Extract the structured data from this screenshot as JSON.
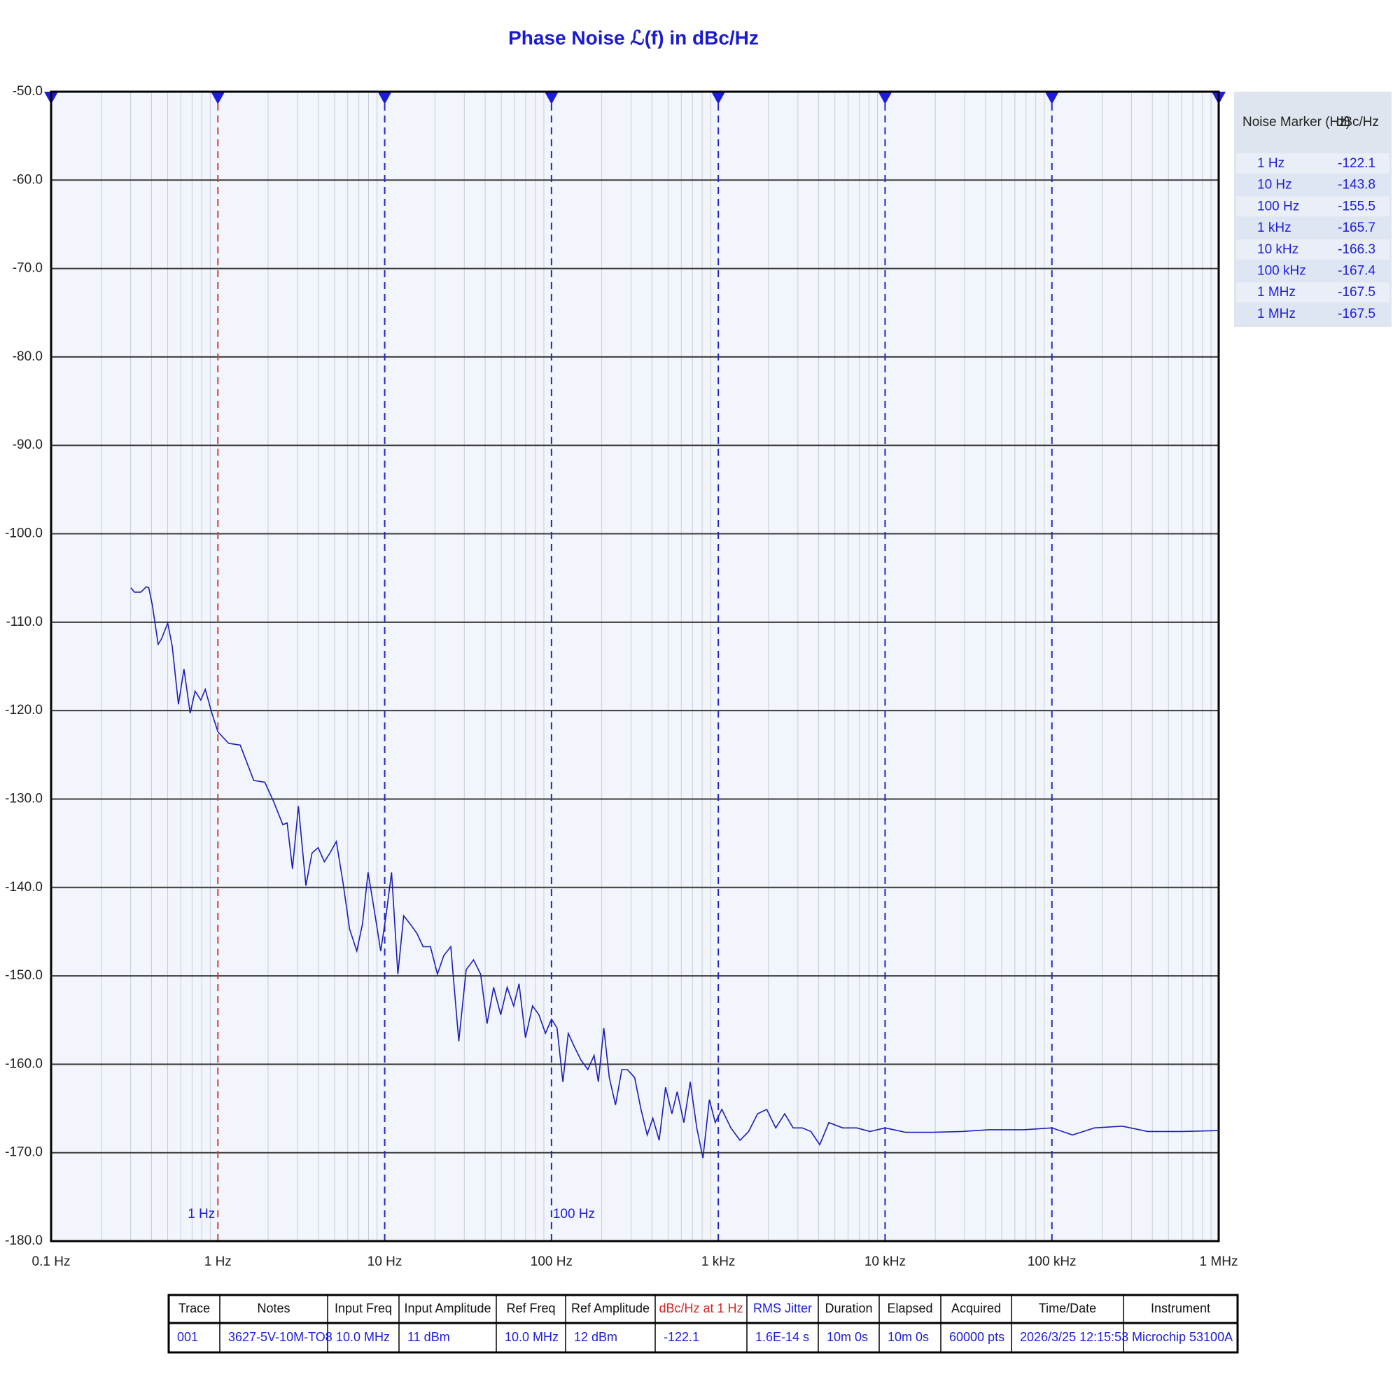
{
  "chart_data": {
    "type": "line",
    "title": "Phase Noise ℒ(f) in dBc/Hz",
    "log_x": true,
    "grid": true,
    "xlim": [
      0.1,
      1000000
    ],
    "xticks": [
      {
        "value": 0.1,
        "label": "0.1 Hz"
      },
      {
        "value": 1,
        "label": "1 Hz"
      },
      {
        "value": 10,
        "label": "10 Hz"
      },
      {
        "value": 100,
        "label": "100 Hz"
      },
      {
        "value": 1000,
        "label": "1 kHz"
      },
      {
        "value": 10000,
        "label": "10 kHz"
      },
      {
        "value": 100000,
        "label": "100 kHz"
      },
      {
        "value": 1000000,
        "label": "1 MHz"
      }
    ],
    "ylim": [
      -180,
      -50
    ],
    "yticks": [
      {
        "value": -50,
        "label": "-50.0"
      },
      {
        "value": -60,
        "label": "-60.0"
      },
      {
        "value": -70,
        "label": "-70.0"
      },
      {
        "value": -80,
        "label": "-80.0"
      },
      {
        "value": -90,
        "label": "-90.0"
      },
      {
        "value": -100,
        "label": "-100.0"
      },
      {
        "value": -110,
        "label": "-110.0"
      },
      {
        "value": -120,
        "label": "-120.0"
      },
      {
        "value": -130,
        "label": "-130.0"
      },
      {
        "value": -140,
        "label": "-140.0"
      },
      {
        "value": -150,
        "label": "-150.0"
      },
      {
        "value": -160,
        "label": "-160.0"
      },
      {
        "value": -170,
        "label": "-170.0"
      },
      {
        "value": -180,
        "label": "-180.0"
      }
    ],
    "annotations": [
      {
        "text": "1 Hz",
        "x": 1
      },
      {
        "text": "100 Hz",
        "x": 100
      }
    ],
    "x": [
      0.301,
      0.316,
      0.345,
      0.372,
      0.385,
      0.405,
      0.438,
      0.459,
      0.5,
      0.532,
      0.58,
      0.626,
      0.682,
      0.73,
      0.79,
      0.84,
      0.92,
      1.0,
      1.16,
      1.36,
      1.64,
      1.91,
      2.16,
      2.45,
      2.6,
      2.8,
      3.04,
      3.37,
      3.67,
      3.99,
      4.35,
      4.7,
      5.13,
      5.64,
      6.16,
      6.8,
      7.36,
      7.95,
      8.58,
      9.47,
      10.2,
      11.0,
      12.0,
      13.0,
      14.3,
      15.6,
      17.0,
      18.8,
      20.7,
      22.6,
      24.9,
      27.8,
      30.8,
      34.1,
      37.6,
      41.1,
      45.0,
      49.6,
      54.2,
      59.3,
      63.9,
      69.8,
      77.0,
      84.1,
      92.0,
      100,
      108,
      117,
      126,
      137,
      150,
      165,
      180,
      191,
      206,
      222,
      242,
      264,
      285,
      315,
      344,
      375,
      405,
      442,
      483,
      527,
      567,
      622,
      679,
      743,
      809,
      884,
      959,
      1050,
      1190,
      1350,
      1520,
      1720,
      1950,
      2210,
      2500,
      2810,
      3180,
      3590,
      4060,
      4600,
      5570,
      6770,
      8110,
      10000,
      13300,
      19200,
      28900,
      41900,
      67800,
      100000,
      133000,
      180000,
      264000,
      375000,
      609000,
      1000000
    ],
    "series": [
      {
        "name": "001",
        "color": "#1c1cb8",
        "values": [
          -106.1,
          -106.6,
          -106.6,
          -106.0,
          -106.1,
          -108.1,
          -112.5,
          -111.9,
          -110.1,
          -112.7,
          -119.3,
          -115.3,
          -120.3,
          -117.8,
          -118.8,
          -117.6,
          -120.3,
          -122.4,
          -123.7,
          -123.9,
          -127.9,
          -128.1,
          -130.3,
          -132.9,
          -132.7,
          -137.9,
          -130.8,
          -139.8,
          -136.1,
          -135.5,
          -137.1,
          -136.1,
          -134.8,
          -139.6,
          -144.7,
          -147.2,
          -144.1,
          -138.3,
          -142.1,
          -147.2,
          -143.1,
          -138.3,
          -149.8,
          -143.2,
          -144.2,
          -145.2,
          -146.7,
          -146.7,
          -149.8,
          -147.7,
          -146.7,
          -157.4,
          -149.3,
          -148.2,
          -149.8,
          -155.4,
          -151.3,
          -154.4,
          -151.3,
          -153.4,
          -150.9,
          -157.0,
          -153.4,
          -154.4,
          -156.5,
          -154.9,
          -155.9,
          -162.0,
          -156.5,
          -158.0,
          -159.5,
          -160.6,
          -159.0,
          -162.0,
          -155.9,
          -161.5,
          -164.6,
          -160.6,
          -160.6,
          -161.5,
          -165.1,
          -168.0,
          -166.1,
          -168.6,
          -162.6,
          -165.6,
          -163.1,
          -166.6,
          -162.0,
          -167.2,
          -170.6,
          -164.0,
          -166.6,
          -165.1,
          -167.2,
          -168.6,
          -167.6,
          -165.6,
          -165.1,
          -167.2,
          -165.6,
          -167.2,
          -167.2,
          -167.6,
          -169.1,
          -166.6,
          -167.2,
          -167.2,
          -167.6,
          -167.2,
          -167.7,
          -167.7,
          -167.6,
          -167.4,
          -167.4,
          -167.2,
          -168.0,
          -167.2,
          -167.0,
          -167.6,
          -167.6,
          -167.5
        ]
      }
    ]
  },
  "marker_table": {
    "header": [
      "Noise Marker (Hz)",
      "dBc/Hz"
    ],
    "rows": [
      [
        "1 Hz",
        -122.1
      ],
      [
        "10 Hz",
        -143.8
      ],
      [
        "100 Hz",
        -155.5
      ],
      [
        "1 kHz",
        -165.7
      ],
      [
        "10 kHz",
        -166.3
      ],
      [
        "100 kHz",
        -167.4
      ],
      [
        "1 MHz",
        -167.5
      ],
      [
        "1 MHz",
        -167.5
      ]
    ]
  },
  "info_table": {
    "header": [
      "Trace",
      "Notes",
      "Input Freq",
      "Input Amplitude",
      "Ref Freq",
      "Ref Amplitude",
      "dBc/Hz at 1 Hz",
      "RMS Jitter",
      "Duration",
      "Elapsed",
      "Acquired",
      "Time/Date",
      "Instrument"
    ],
    "row": [
      "001",
      "3627-5V-10M-TO8",
      "10.0 MHz",
      "11 dBm",
      "10.0 MHz",
      "12 dBm",
      "-122.1",
      "1.6E-14 s",
      "10m 0s",
      "10m 0s",
      "60000 pts",
      "2026/3/25 12:15:53",
      "Microchip 53100A"
    ]
  }
}
